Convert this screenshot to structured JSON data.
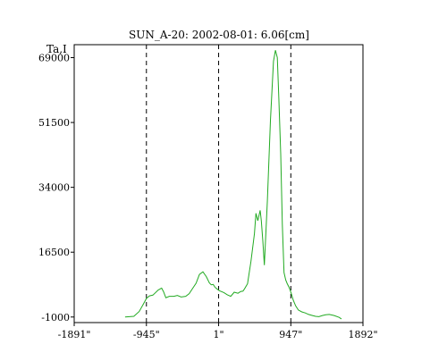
{
  "chart_data": {
    "type": "line",
    "title": "SUN_A-20: 2002-08-01: 6.06[cm]",
    "ylabel": "Ta,I",
    "xlabel": "",
    "xlim": [
      -1891,
      1892
    ],
    "ylim": [
      -2500,
      72500
    ],
    "x_ticks": [
      {
        "value": -1891,
        "label": "-1891\""
      },
      {
        "value": -945,
        "label": "-945\""
      },
      {
        "value": 1,
        "label": "1\""
      },
      {
        "value": 947,
        "label": "947\""
      },
      {
        "value": 1892,
        "label": "1892\""
      }
    ],
    "y_ticks": [
      {
        "value": -1000,
        "label": "-1000"
      },
      {
        "value": 16500,
        "label": "16500"
      },
      {
        "value": 34000,
        "label": "34000"
      },
      {
        "value": 51500,
        "label": "51500"
      },
      {
        "value": 69000,
        "label": "69000"
      }
    ],
    "vlines": [
      -945,
      1,
      947
    ],
    "grid": false,
    "series": [
      {
        "color": "#22aa22",
        "x": [
          -1225,
          -1110,
          -1040,
          -985,
          -945,
          -905,
          -860,
          -790,
          -745,
          -720,
          -690,
          -645,
          -585,
          -540,
          -490,
          -430,
          -385,
          -340,
          -295,
          -250,
          -205,
          -160,
          -120,
          -95,
          -70,
          -45,
          -20,
          10,
          70,
          115,
          160,
          205,
          255,
          290,
          320,
          340,
          380,
          425,
          470,
          490,
          515,
          545,
          560,
          580,
          600,
          640,
          680,
          720,
          745,
          770,
          790,
          815,
          835,
          858,
          880,
          900,
          925,
          950,
          980,
          1010,
          1045,
          1090,
          1135,
          1180,
          1230,
          1270,
          1315,
          1360,
          1405,
          1450,
          1515,
          1580,
          1610
        ],
        "y": [
          -1000,
          -800,
          500,
          2500,
          4000,
          4700,
          4900,
          6300,
          6800,
          5800,
          4200,
          4600,
          4600,
          4800,
          4400,
          4600,
          5300,
          6700,
          8100,
          10500,
          11200,
          9900,
          8200,
          7700,
          7800,
          7000,
          6600,
          6100,
          5600,
          5000,
          4600,
          5700,
          5400,
          5900,
          6000,
          6600,
          8000,
          14000,
          21500,
          27000,
          25000,
          27800,
          25000,
          19500,
          13000,
          30500,
          52000,
          68000,
          71000,
          69000,
          58000,
          43000,
          24000,
          11000,
          9000,
          8000,
          7000,
          5500,
          3500,
          2000,
          900,
          400,
          100,
          -300,
          -600,
          -800,
          -900,
          -600,
          -400,
          -300,
          -600,
          -1100,
          -1500
        ]
      }
    ]
  }
}
